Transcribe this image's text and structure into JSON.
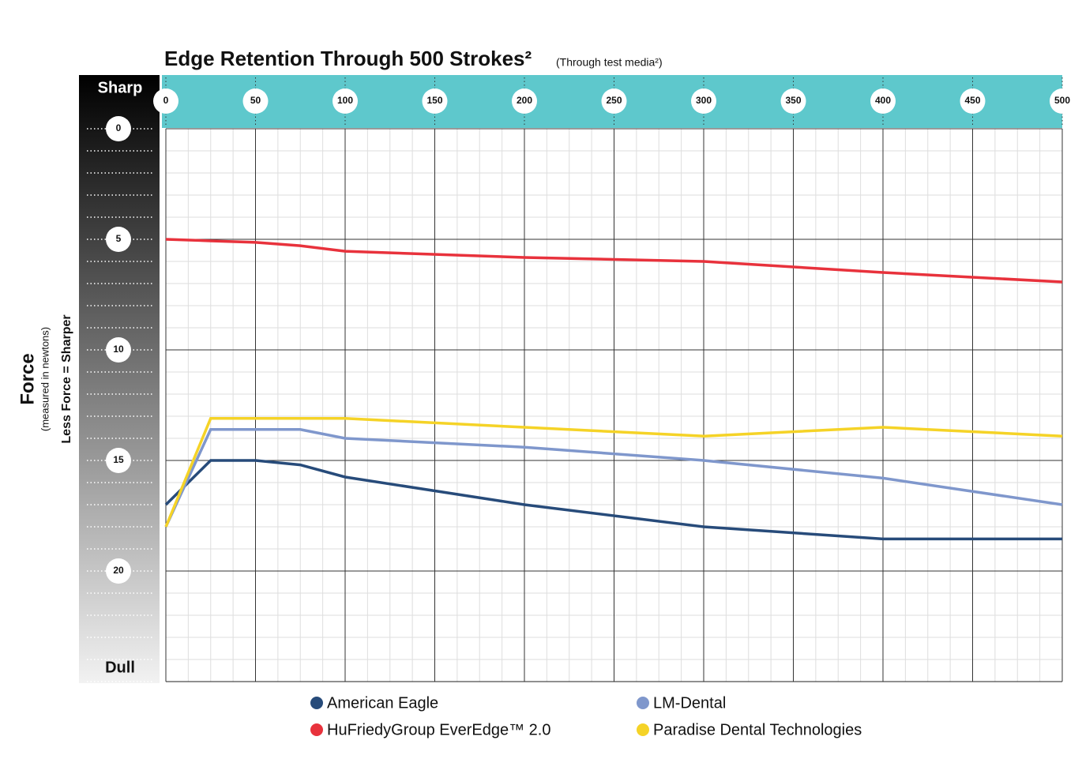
{
  "chart_data": {
    "type": "line",
    "title": "Edge Retention Through 500 Strokes²",
    "subtitle": "(Through test media²)",
    "y_label": "Force",
    "y_sublabel": "(measured in newtons)",
    "y_note": "Less Force = Sharper",
    "y_top_label": "Sharp",
    "y_bottom_label": "Dull",
    "x": [
      0,
      25,
      50,
      75,
      100,
      200,
      300,
      400,
      500
    ],
    "xlim": [
      0,
      500
    ],
    "xticks": [
      0,
      50,
      100,
      150,
      200,
      250,
      300,
      350,
      400,
      450,
      500
    ],
    "ylim": [
      0,
      25
    ],
    "yticks": [
      0,
      5,
      10,
      15,
      20
    ],
    "y_reversed": true,
    "grid": true,
    "series": [
      {
        "name": "American Eagle",
        "color": "#274b7a",
        "values": [
          17.0,
          15.0,
          15.0,
          15.2,
          15.75,
          17.0,
          18.0,
          18.55,
          18.55
        ]
      },
      {
        "name": "LM-Dental",
        "color": "#7f97cc",
        "values": [
          18.0,
          13.6,
          13.6,
          13.6,
          14.0,
          14.4,
          15.0,
          15.8,
          17.0
        ]
      },
      {
        "name": "HuFriedyGroup EverEdge™ 2.0",
        "color": "#e8323c",
        "values": [
          5.0,
          5.07,
          5.14,
          5.29,
          5.54,
          5.82,
          6.0,
          6.5,
          6.93
        ]
      },
      {
        "name": "Paradise Dental Technologies",
        "color": "#f5d327",
        "values": [
          18.0,
          13.1,
          13.1,
          13.1,
          13.1,
          13.5,
          13.9,
          13.5,
          13.9
        ]
      }
    ]
  }
}
